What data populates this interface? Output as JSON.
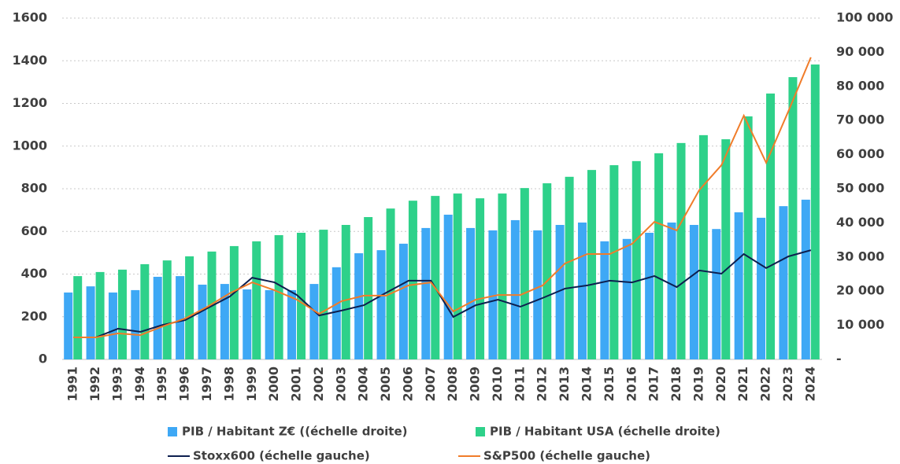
{
  "chart_data": {
    "type": "bar-line",
    "categories": [
      "1991",
      "1992",
      "1993",
      "1994",
      "1995",
      "1996",
      "1997",
      "1998",
      "1999",
      "2000",
      "2001",
      "2002",
      "2003",
      "2004",
      "2005",
      "2006",
      "2007",
      "2008",
      "2009",
      "2010",
      "2011",
      "2012",
      "2013",
      "2014",
      "2015",
      "2016",
      "2017",
      "2018",
      "2019",
      "2020",
      "2021",
      "2022",
      "2023",
      "2024"
    ],
    "series": [
      {
        "name": "PIB / Habitant Z€ ((échelle droite)",
        "color": "#3ea8f5",
        "kind": "bar",
        "axis": "y2",
        "values": [
          19600,
          21400,
          19600,
          20300,
          24200,
          24400,
          21900,
          22100,
          20500,
          20300,
          20300,
          22100,
          27000,
          31100,
          32000,
          33900,
          38500,
          42400,
          38500,
          37800,
          40800,
          37800,
          39400,
          40100,
          34600,
          35300,
          37100,
          40100,
          39400,
          38200,
          43100,
          41500,
          44900,
          46800
        ]
      },
      {
        "name": "PIB / Habitant USA (échelle droite)",
        "color": "#2ed18a",
        "kind": "bar",
        "axis": "y2",
        "values": [
          24400,
          25600,
          26300,
          27900,
          29000,
          30200,
          31600,
          33200,
          34600,
          36400,
          37100,
          38000,
          39400,
          41700,
          44200,
          46500,
          47900,
          48600,
          47200,
          48600,
          50200,
          51600,
          53500,
          55500,
          56900,
          58100,
          60400,
          63400,
          65700,
          64500,
          71200,
          77900,
          82700,
          86400
        ]
      },
      {
        "name": "Stoxx600 (échelle gauche)",
        "color": "#0d1f4f",
        "kind": "line",
        "values": [
          103,
          103,
          144,
          129,
          162,
          184,
          240,
          295,
          383,
          361,
          302,
          206,
          229,
          254,
          313,
          369,
          369,
          199,
          254,
          280,
          247,
          288,
          332,
          347,
          369,
          361,
          391,
          339,
          417,
          402,
          494,
          428,
          483,
          512
        ]
      },
      {
        "name": "S&P500 (échelle gauche)",
        "color": "#f07c2a",
        "kind": "line",
        "values": [
          103,
          103,
          122,
          114,
          155,
          192,
          247,
          310,
          361,
          324,
          280,
          214,
          273,
          299,
          299,
          347,
          361,
          225,
          280,
          302,
          302,
          347,
          450,
          494,
          494,
          542,
          645,
          605,
          793,
          911,
          1143,
          922,
          1165,
          1416
        ]
      }
    ],
    "ylim": [
      0,
      1600
    ],
    "yticks": [
      0,
      200,
      400,
      600,
      800,
      1000,
      1200,
      1400,
      1600
    ],
    "y2lim": [
      0,
      100000
    ],
    "y2ticks": [
      {
        "value": 0,
        "label": "-"
      },
      {
        "value": 10000,
        "label": "10 000"
      },
      {
        "value": 20000,
        "label": "20 000"
      },
      {
        "value": 30000,
        "label": "30 000"
      },
      {
        "value": 40000,
        "label": "40 000"
      },
      {
        "value": 50000,
        "label": "50 000"
      },
      {
        "value": 60000,
        "label": "60 000"
      },
      {
        "value": 70000,
        "label": "70 000"
      },
      {
        "value": 80000,
        "label": "80 000"
      },
      {
        "value": 90000,
        "label": "90 000"
      },
      {
        "value": 100000,
        "label": "100 000"
      }
    ],
    "grid": true,
    "legend": "bottom"
  }
}
